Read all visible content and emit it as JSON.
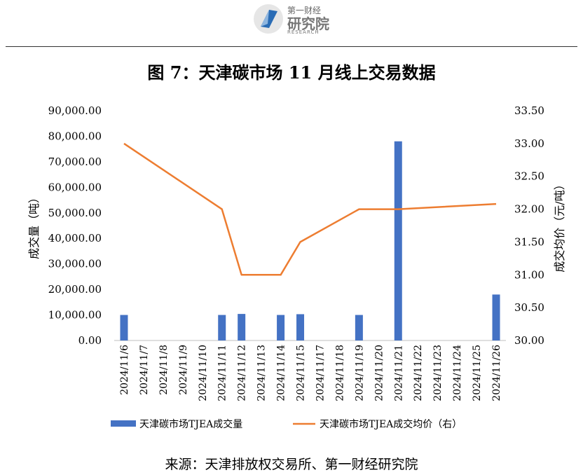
{
  "header": {
    "logo_top": "第一财经",
    "logo_main": "研究院",
    "logo_sub": "RESEARCH",
    "title": "图 7：天津碳市场 11 月线上交易数据"
  },
  "footer": {
    "source": "来源：天津排放权交易所、第一财经研究院"
  },
  "chart_data": {
    "type": "bar+line",
    "categories": [
      "2024/11/6",
      "2024/11/7",
      "2024/11/8",
      "2024/11/9",
      "2024/11/10",
      "2024/11/11",
      "2024/11/12",
      "2024/11/13",
      "2024/11/14",
      "2024/11/15",
      "2024/11/17",
      "2024/11/18",
      "2024/11/19",
      "2024/11/20",
      "2024/11/21",
      "2024/11/22",
      "2024/11/23",
      "2024/11/24",
      "2024/11/25",
      "2024/11/26"
    ],
    "left_axis": {
      "label": "成交量（吨）",
      "ylim": [
        0,
        90000
      ],
      "ticks": [
        "0.00",
        "10,000.00",
        "20,000.00",
        "30,000.00",
        "40,000.00",
        "50,000.00",
        "60,000.00",
        "70,000.00",
        "80,000.00",
        "90,000.00"
      ]
    },
    "right_axis": {
      "label": "成交均价（元/吨）",
      "ylim": [
        30.0,
        33.5
      ],
      "ticks": [
        "30.00",
        "30.50",
        "31.00",
        "31.50",
        "32.00",
        "32.50",
        "33.00",
        "33.50"
      ]
    },
    "series": [
      {
        "name": "天津碳市场TJEA成交量",
        "type": "bar",
        "axis": "left",
        "color": "#4472C4",
        "values": [
          10000,
          null,
          null,
          null,
          null,
          10000,
          10400,
          null,
          10000,
          10300,
          null,
          null,
          10000,
          null,
          78000,
          null,
          null,
          null,
          null,
          18000
        ]
      },
      {
        "name": "天津碳市场TJEA成交均价（右）",
        "type": "line",
        "axis": "right",
        "color": "#ED7D31",
        "points": [
          {
            "x": "2024/11/6",
            "y": 33.0
          },
          {
            "x": "2024/11/11",
            "y": 32.0
          },
          {
            "x": "2024/11/12",
            "y": 31.0
          },
          {
            "x": "2024/11/14",
            "y": 31.0
          },
          {
            "x": "2024/11/15",
            "y": 31.5
          },
          {
            "x": "2024/11/19",
            "y": 32.0
          },
          {
            "x": "2024/11/21",
            "y": 32.0
          },
          {
            "x": "2024/11/26",
            "y": 32.08
          }
        ]
      }
    ],
    "legend": "bottom",
    "grid": false
  }
}
